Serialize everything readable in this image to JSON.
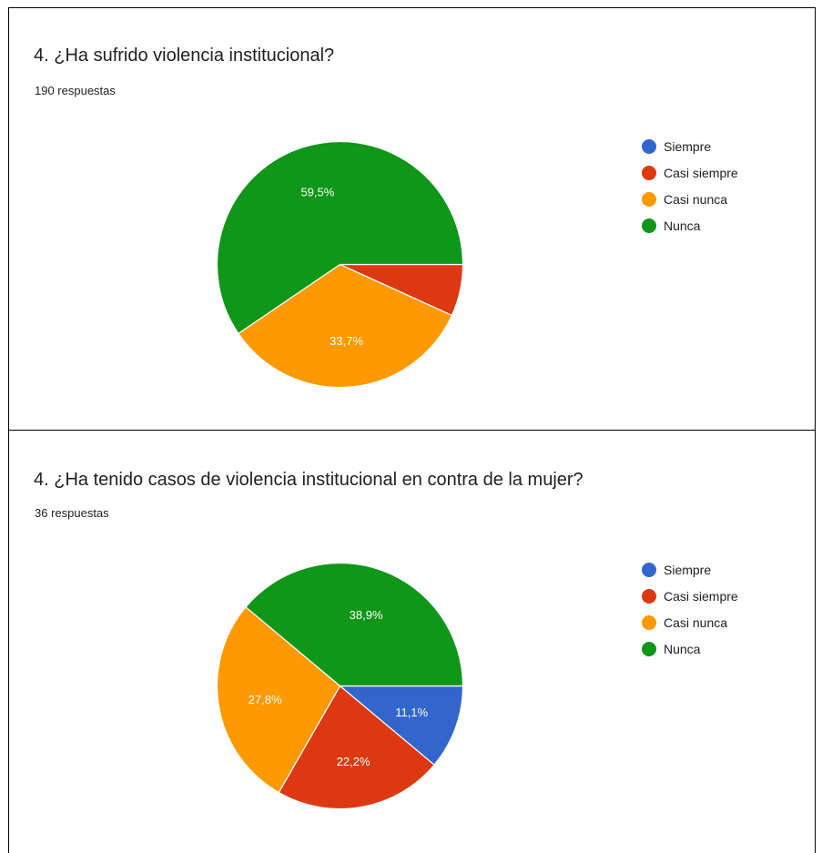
{
  "chart_data": [
    {
      "type": "pie",
      "title": "4. ¿Ha sufrido violencia institucional?",
      "subtitle": "190 respuestas",
      "legend_position": "right",
      "categories": [
        "Siempre",
        "Casi siempre",
        "Casi nunca",
        "Nunca"
      ],
      "values": [
        0,
        6.8,
        33.7,
        59.5
      ],
      "colors": [
        "#3366cc",
        "#dc3912",
        "#ff9900",
        "#109618"
      ],
      "data_labels": [
        "",
        "",
        "33,7%",
        "59,5%"
      ]
    },
    {
      "type": "pie",
      "title": "4. ¿Ha tenido casos de violencia institucional en contra de la mujer?",
      "subtitle": "36 respuestas",
      "legend_position": "right",
      "categories": [
        "Siempre",
        "Casi siempre",
        "Casi nunca",
        "Nunca"
      ],
      "values": [
        11.1,
        22.2,
        27.8,
        38.9
      ],
      "colors": [
        "#3366cc",
        "#dc3912",
        "#ff9900",
        "#109618"
      ],
      "data_labels": [
        "11,1%",
        "22,2%",
        "27,8%",
        "38,9%"
      ]
    }
  ]
}
